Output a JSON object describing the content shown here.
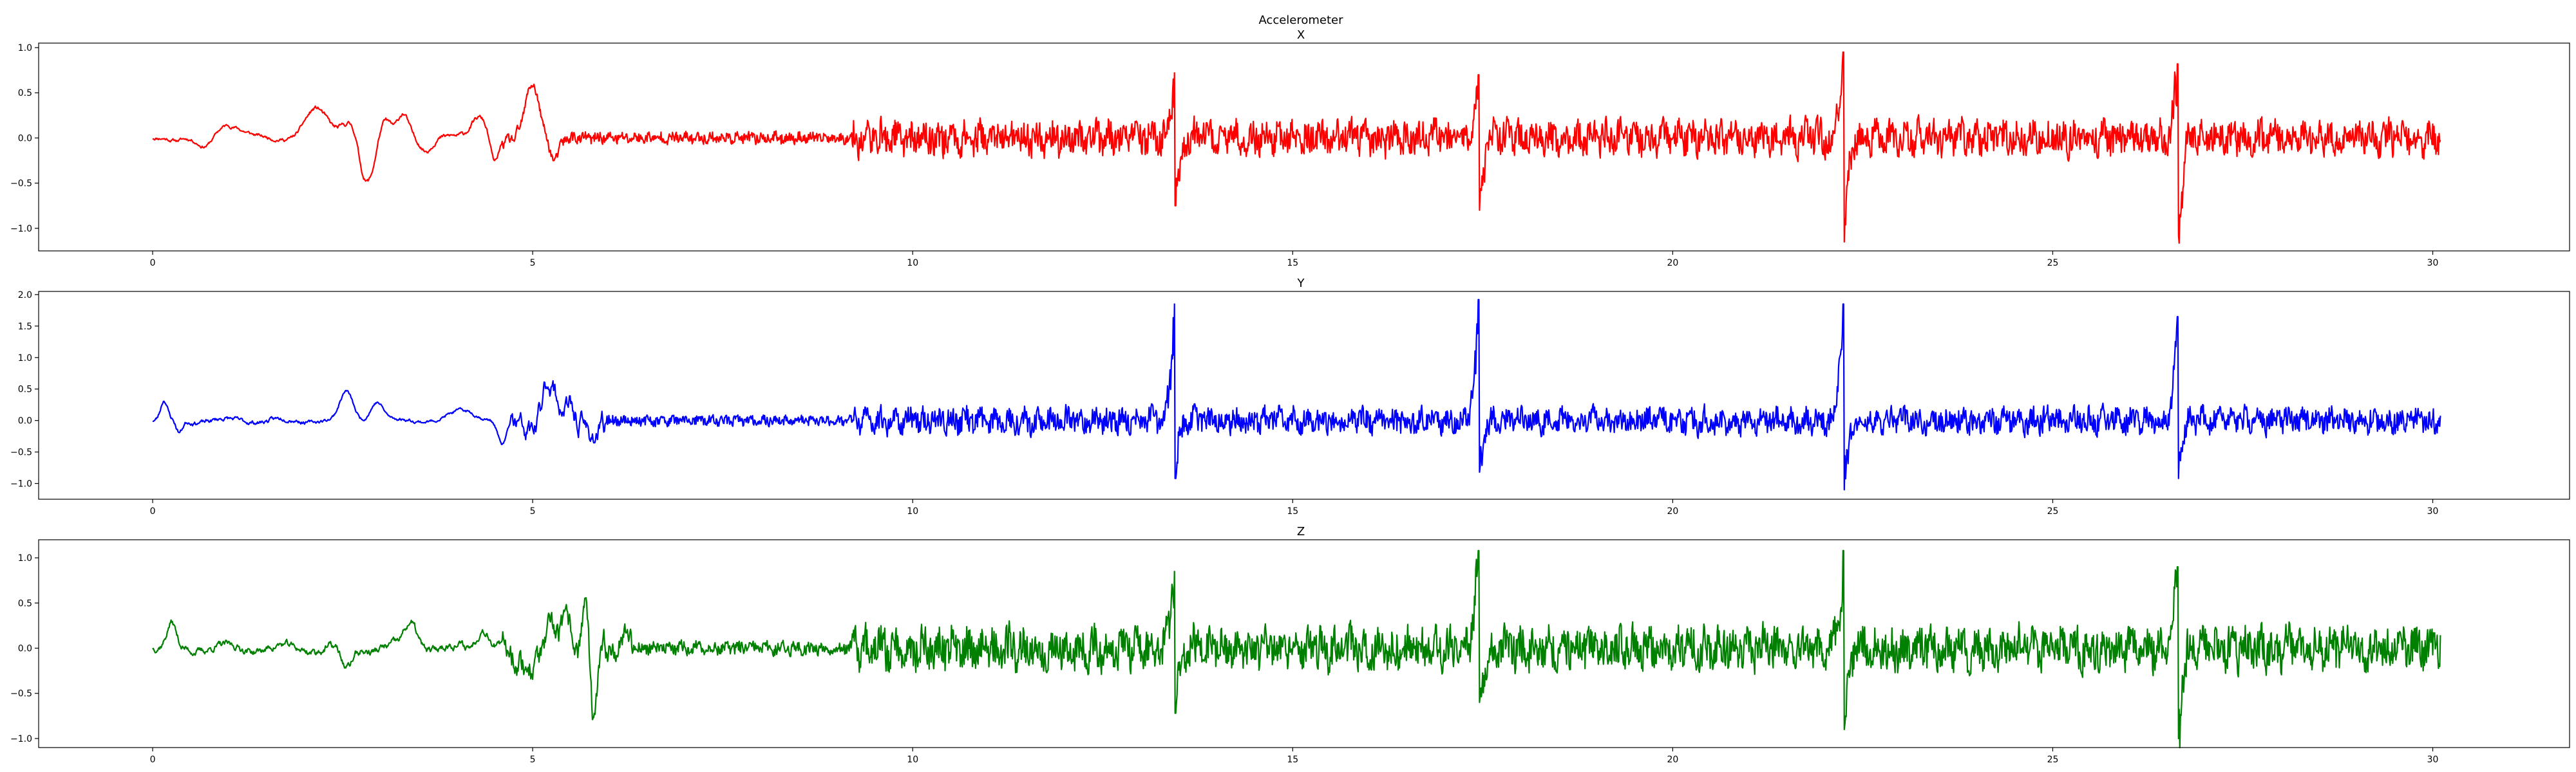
{
  "figure": {
    "title": "Accelerometer"
  },
  "chart_data": [
    {
      "type": "line",
      "title": "X",
      "color": "#ff0000",
      "xlim": [
        -1.5,
        31.8
      ],
      "ylim": [
        -1.25,
        1.05
      ],
      "xticks": [
        0,
        5,
        10,
        15,
        20,
        25,
        30
      ],
      "xtick_labels": [
        "0",
        "5",
        "10",
        "15",
        "20",
        "25",
        "30"
      ],
      "yticks": [
        -1.0,
        -0.5,
        0.0,
        0.5,
        1.0
      ],
      "ytick_labels": [
        "−1.0",
        "−0.5",
        "0.0",
        "0.5",
        "1.0"
      ],
      "grid": false,
      "x_range": [
        0,
        30.1
      ],
      "signal": {
        "segments": [
          {
            "x0": 0,
            "x1": 2.0,
            "amp": 0.05,
            "freq": 3
          },
          {
            "x0": 2.0,
            "x1": 4.6,
            "amp": 0.05,
            "freq": 4
          },
          {
            "x0": 4.6,
            "x1": 5.4,
            "amp": 0.12,
            "freq": 5
          },
          {
            "x0": 5.4,
            "x1": 9.2,
            "amp": 0.04,
            "freq": 18
          },
          {
            "x0": 9.2,
            "x1": 30.1,
            "amp": 0.13,
            "freq": 16
          }
        ],
        "bumps": [
          {
            "x": 0.3,
            "y": -0.05,
            "w": 0.15
          },
          {
            "x": 0.7,
            "y": -0.12,
            "w": 0.15
          },
          {
            "x": 0.95,
            "y": 0.15,
            "w": 0.25
          },
          {
            "x": 2.15,
            "y": 0.35,
            "w": 0.2
          },
          {
            "x": 2.6,
            "y": 0.15,
            "w": 0.15
          },
          {
            "x": 2.75,
            "y": -0.18,
            "w": 0.08
          },
          {
            "x": 2.85,
            "y": -0.42,
            "w": 0.12
          },
          {
            "x": 3.05,
            "y": 0.2,
            "w": 0.12
          },
          {
            "x": 3.3,
            "y": 0.25,
            "w": 0.1
          },
          {
            "x": 3.6,
            "y": -0.12,
            "w": 0.1
          },
          {
            "x": 4.3,
            "y": 0.25,
            "w": 0.15
          },
          {
            "x": 4.5,
            "y": -0.3,
            "w": 0.08
          },
          {
            "x": 5.0,
            "y": 0.55,
            "w": 0.12
          },
          {
            "x": 5.3,
            "y": -0.2,
            "w": 0.08
          }
        ],
        "spikes": [
          {
            "x": 13.45,
            "max": 0.72,
            "min": -0.75
          },
          {
            "x": 17.45,
            "max": 0.7,
            "min": -0.8
          },
          {
            "x": 22.25,
            "max": 0.95,
            "min": -1.15
          },
          {
            "x": 26.65,
            "max": 0.82,
            "min": -1.08
          }
        ],
        "seed": 11
      }
    },
    {
      "type": "line",
      "title": "Y",
      "color": "#0000ff",
      "xlim": [
        -1.5,
        31.8
      ],
      "ylim": [
        -1.25,
        2.05
      ],
      "xticks": [
        0,
        5,
        10,
        15,
        20,
        25,
        30
      ],
      "xtick_labels": [
        "0",
        "5",
        "10",
        "15",
        "20",
        "25",
        "30"
      ],
      "yticks": [
        -1.0,
        -0.5,
        0.0,
        0.5,
        1.0,
        1.5,
        2.0
      ],
      "ytick_labels": [
        "−1.0",
        "−0.5",
        "0.0",
        "0.5",
        "1.0",
        "1.5",
        "2.0"
      ],
      "grid": false,
      "x_range": [
        0,
        30.1
      ],
      "signal": {
        "segments": [
          {
            "x0": 0,
            "x1": 2.0,
            "amp": 0.07,
            "freq": 4
          },
          {
            "x0": 2.0,
            "x1": 4.7,
            "amp": 0.05,
            "freq": 4
          },
          {
            "x0": 4.7,
            "x1": 6.0,
            "amp": 0.45,
            "freq": 3.5
          },
          {
            "x0": 6.0,
            "x1": 9.2,
            "amp": 0.05,
            "freq": 18
          },
          {
            "x0": 9.2,
            "x1": 30.1,
            "amp": 0.14,
            "freq": 16
          }
        ],
        "bumps": [
          {
            "x": 0.15,
            "y": 0.3,
            "w": 0.06
          },
          {
            "x": 0.35,
            "y": -0.2,
            "w": 0.06
          },
          {
            "x": 2.55,
            "y": 0.45,
            "w": 0.12
          },
          {
            "x": 2.95,
            "y": 0.3,
            "w": 0.12
          },
          {
            "x": 4.1,
            "y": 0.15,
            "w": 0.25
          },
          {
            "x": 4.6,
            "y": -0.4,
            "w": 0.08
          },
          {
            "x": 5.2,
            "y": 0.6,
            "w": 0.1
          }
        ],
        "spikes": [
          {
            "x": 13.45,
            "max": 1.85,
            "min": -0.92
          },
          {
            "x": 17.45,
            "max": 1.92,
            "min": -0.82
          },
          {
            "x": 22.25,
            "max": 1.85,
            "min": -1.1
          },
          {
            "x": 26.65,
            "max": 1.65,
            "min": -0.92
          }
        ],
        "seed": 23
      }
    },
    {
      "type": "line",
      "title": "Z",
      "color": "#008000",
      "xlim": [
        -1.5,
        31.8
      ],
      "ylim": [
        -1.1,
        1.2
      ],
      "xticks": [
        0,
        5,
        10,
        15,
        20,
        25,
        30
      ],
      "xtick_labels": [
        "0",
        "5",
        "10",
        "15",
        "20",
        "25",
        "30"
      ],
      "yticks": [
        -1.0,
        -0.5,
        0.0,
        0.5,
        1.0
      ],
      "ytick_labels": [
        "−1.0",
        "−0.5",
        "0.0",
        "0.5",
        "1.0"
      ],
      "grid": false,
      "x_range": [
        0,
        30.1
      ],
      "signal": {
        "segments": [
          {
            "x0": 0,
            "x1": 2.0,
            "amp": 0.08,
            "freq": 4
          },
          {
            "x0": 2.0,
            "x1": 4.6,
            "amp": 0.09,
            "freq": 4
          },
          {
            "x0": 4.6,
            "x1": 6.3,
            "amp": 0.4,
            "freq": 3.5
          },
          {
            "x0": 6.3,
            "x1": 9.2,
            "amp": 0.05,
            "freq": 16
          },
          {
            "x0": 9.2,
            "x1": 30.1,
            "amp": 0.16,
            "freq": 16
          }
        ],
        "bumps": [
          {
            "x": 0.25,
            "y": 0.25,
            "w": 0.08
          },
          {
            "x": 2.55,
            "y": -0.25,
            "w": 0.1
          },
          {
            "x": 3.4,
            "y": 0.28,
            "w": 0.12
          },
          {
            "x": 4.35,
            "y": 0.25,
            "w": 0.12
          },
          {
            "x": 5.7,
            "y": 0.7,
            "w": 0.06
          },
          {
            "x": 5.8,
            "y": -0.78,
            "w": 0.06
          }
        ],
        "spikes": [
          {
            "x": 13.45,
            "max": 0.85,
            "min": -0.72
          },
          {
            "x": 17.45,
            "max": 1.08,
            "min": -0.6
          },
          {
            "x": 22.25,
            "max": 1.08,
            "min": -0.9
          },
          {
            "x": 26.65,
            "max": 0.9,
            "min": -1.0
          }
        ],
        "seed": 37
      }
    }
  ]
}
